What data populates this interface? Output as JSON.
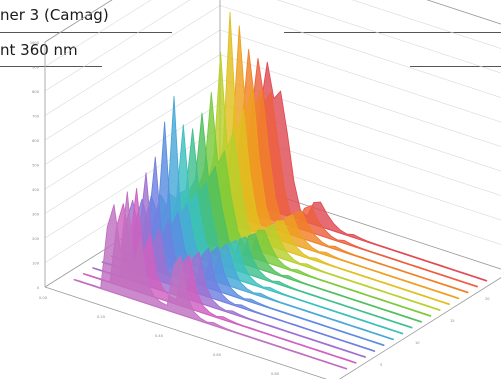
{
  "header": {
    "line1": "ner 3 (Camag)",
    "line2": "nt 360 nm"
  },
  "chart_data": {
    "type": "area",
    "title": "",
    "xlabel": "",
    "ylabel": "",
    "zlabel": "",
    "grid": true,
    "x_ticks": [
      "0.00",
      "0.20",
      "0.40",
      "0.60",
      "0.80",
      "1.00"
    ],
    "y_ticks": [
      "0",
      "100",
      "200",
      "300",
      "400",
      "500",
      "600",
      "700",
      "800",
      "900",
      "1000"
    ],
    "z_ticks": [
      "0",
      "5",
      "10",
      "15",
      "20",
      "25"
    ],
    "ylim": [
      0,
      1000
    ],
    "xlim": [
      0,
      1
    ],
    "colors": [
      "#c070c0",
      "#d060c0",
      "#a070d0",
      "#7080e0",
      "#5a8de0",
      "#49a8d8",
      "#3cbfbf",
      "#40c090",
      "#50c060",
      "#7acb3c",
      "#b8cf2c",
      "#e0c020",
      "#eea020",
      "#f08028",
      "#ec6040",
      "#e04c55"
    ],
    "series": [
      {
        "values": [
          2,
          3,
          3,
          4,
          3,
          260,
          360,
          180,
          430,
          150,
          260,
          90,
          40,
          25,
          20,
          190,
          240,
          90,
          30,
          12,
          5,
          12,
          7,
          4,
          3,
          3,
          3,
          3,
          3,
          3,
          3,
          3,
          3,
          3,
          3,
          3,
          3,
          3,
          3,
          3,
          3,
          3
        ]
      },
      {
        "values": [
          2,
          3,
          3,
          4,
          3,
          240,
          340,
          200,
          420,
          160,
          250,
          100,
          45,
          25,
          20,
          180,
          220,
          80,
          30,
          12,
          5,
          12,
          7,
          4,
          3,
          3,
          3,
          3,
          3,
          3,
          3,
          3,
          3,
          3,
          3,
          3,
          3,
          3,
          3,
          3,
          3,
          3
        ]
      },
      {
        "values": [
          2,
          3,
          3,
          4,
          3,
          230,
          330,
          210,
          460,
          170,
          250,
          110,
          45,
          30,
          20,
          170,
          210,
          80,
          30,
          12,
          5,
          12,
          7,
          4,
          3,
          3,
          3,
          3,
          3,
          3,
          3,
          3,
          3,
          3,
          3,
          3,
          3,
          3,
          3,
          3,
          3,
          3
        ]
      },
      {
        "values": [
          2,
          3,
          3,
          4,
          3,
          210,
          310,
          220,
          500,
          180,
          260,
          120,
          50,
          30,
          25,
          160,
          200,
          80,
          30,
          12,
          5,
          12,
          7,
          4,
          3,
          3,
          3,
          3,
          3,
          3,
          3,
          3,
          3,
          3,
          3,
          3,
          3,
          3,
          3,
          3,
          3,
          3
        ]
      },
      {
        "values": [
          2,
          3,
          3,
          4,
          3,
          190,
          300,
          230,
          620,
          200,
          270,
          130,
          60,
          30,
          25,
          150,
          180,
          80,
          30,
          12,
          5,
          12,
          7,
          4,
          3,
          3,
          3,
          3,
          3,
          3,
          3,
          3,
          3,
          3,
          3,
          3,
          3,
          3,
          3,
          3,
          3,
          3
        ]
      },
      {
        "values": [
          2,
          3,
          3,
          4,
          3,
          170,
          280,
          240,
          700,
          230,
          280,
          140,
          60,
          30,
          25,
          140,
          170,
          80,
          30,
          12,
          5,
          12,
          7,
          4,
          3,
          3,
          3,
          3,
          3,
          3,
          3,
          3,
          3,
          3,
          3,
          3,
          3,
          3,
          3,
          3,
          3,
          3
        ]
      },
      {
        "values": [
          2,
          3,
          3,
          4,
          3,
          160,
          260,
          250,
          560,
          250,
          300,
          150,
          60,
          30,
          25,
          140,
          160,
          70,
          30,
          12,
          5,
          12,
          7,
          4,
          3,
          3,
          3,
          3,
          3,
          3,
          3,
          3,
          3,
          3,
          3,
          3,
          3,
          3,
          3,
          3,
          3,
          3
        ]
      },
      {
        "values": [
          2,
          3,
          3,
          4,
          3,
          150,
          240,
          260,
          520,
          270,
          320,
          180,
          70,
          30,
          25,
          130,
          150,
          70,
          30,
          12,
          5,
          12,
          7,
          4,
          3,
          3,
          3,
          3,
          3,
          3,
          3,
          3,
          3,
          3,
          3,
          3,
          3,
          3,
          3,
          3,
          3,
          3
        ]
      },
      {
        "values": [
          2,
          3,
          3,
          4,
          3,
          140,
          220,
          280,
          560,
          300,
          360,
          200,
          80,
          30,
          25,
          120,
          140,
          70,
          30,
          12,
          5,
          12,
          7,
          4,
          3,
          3,
          3,
          3,
          3,
          3,
          3,
          3,
          3,
          3,
          3,
          3,
          3,
          3,
          3,
          3,
          3,
          3
        ]
      },
      {
        "values": [
          2,
          3,
          3,
          4,
          3,
          130,
          210,
          300,
          620,
          340,
          400,
          220,
          90,
          35,
          25,
          120,
          130,
          70,
          30,
          12,
          5,
          12,
          7,
          4,
          3,
          3,
          3,
          3,
          3,
          3,
          3,
          3,
          3,
          3,
          3,
          3,
          3,
          3,
          3,
          3,
          3,
          3
        ]
      },
      {
        "values": [
          2,
          3,
          3,
          4,
          3,
          120,
          200,
          330,
          760,
          380,
          460,
          250,
          100,
          35,
          25,
          110,
          130,
          70,
          30,
          12,
          5,
          12,
          7,
          4,
          3,
          3,
          3,
          3,
          3,
          3,
          3,
          3,
          3,
          3,
          3,
          3,
          3,
          3,
          3,
          3,
          3,
          3
        ]
      },
      {
        "values": [
          2,
          3,
          3,
          4,
          3,
          110,
          190,
          350,
          900,
          420,
          520,
          270,
          110,
          40,
          25,
          110,
          120,
          70,
          30,
          12,
          5,
          12,
          7,
          4,
          3,
          3,
          3,
          3,
          3,
          3,
          3,
          3,
          3,
          3,
          3,
          3,
          3,
          3,
          3,
          3,
          3,
          3
        ]
      },
      {
        "values": [
          2,
          3,
          3,
          4,
          3,
          100,
          180,
          370,
          820,
          470,
          600,
          300,
          120,
          40,
          25,
          100,
          120,
          60,
          30,
          12,
          5,
          12,
          7,
          4,
          3,
          3,
          3,
          3,
          3,
          3,
          3,
          3,
          3,
          3,
          3,
          3,
          3,
          3,
          3,
          3,
          3,
          3
        ]
      },
      {
        "values": [
          2,
          3,
          3,
          4,
          3,
          90,
          170,
          390,
          700,
          480,
          560,
          320,
          130,
          40,
          25,
          100,
          110,
          60,
          30,
          12,
          5,
          12,
          7,
          4,
          3,
          3,
          3,
          3,
          3,
          3,
          3,
          3,
          3,
          3,
          3,
          3,
          3,
          3,
          3,
          3,
          3,
          3
        ]
      },
      {
        "values": [
          2,
          3,
          3,
          4,
          3,
          80,
          160,
          400,
          640,
          470,
          520,
          330,
          140,
          40,
          25,
          90,
          110,
          60,
          30,
          12,
          5,
          12,
          7,
          4,
          3,
          3,
          3,
          3,
          3,
          3,
          3,
          3,
          3,
          3,
          3,
          3,
          3,
          3,
          3,
          3,
          3,
          3
        ]
      },
      {
        "values": [
          2,
          3,
          3,
          4,
          3,
          70,
          150,
          410,
          600,
          460,
          500,
          340,
          150,
          40,
          25,
          90,
          100,
          60,
          30,
          12,
          5,
          12,
          7,
          4,
          3,
          3,
          3,
          3,
          3,
          3,
          3,
          3,
          3,
          3,
          3,
          3,
          3,
          3,
          3,
          3,
          3,
          3
        ]
      }
    ]
  }
}
